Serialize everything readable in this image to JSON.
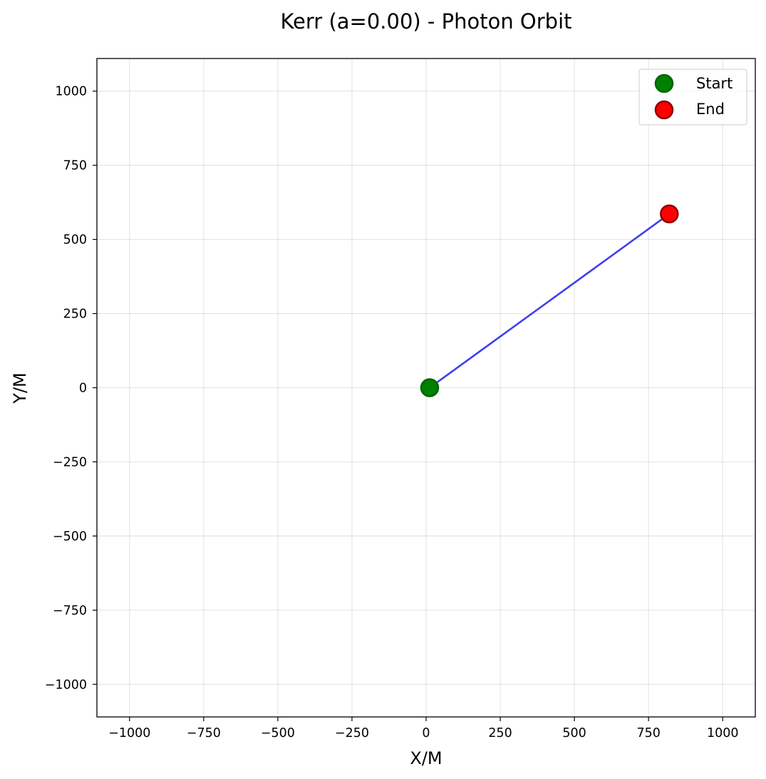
{
  "chart_data": {
    "type": "line",
    "title": "Kerr (a=0.00) - Photon Orbit",
    "xlabel": "X/M",
    "ylabel": "Y/M",
    "xlim": [
      -1110,
      1110
    ],
    "ylim": [
      -1110,
      1110
    ],
    "grid": true,
    "legend_position": "top-right",
    "xticks": [
      -1000,
      -750,
      -500,
      -250,
      0,
      250,
      500,
      750,
      1000
    ],
    "yticks": [
      -1000,
      -750,
      -500,
      -250,
      0,
      250,
      500,
      750,
      1000
    ],
    "xtick_labels": [
      "−1000",
      "−750",
      "−500",
      "−250",
      "0",
      "250",
      "500",
      "750",
      "1000"
    ],
    "ytick_labels": [
      "−1000",
      "−750",
      "−500",
      "−250",
      "0",
      "250",
      "500",
      "750",
      "1000"
    ],
    "series": [
      {
        "type": "line",
        "color": "#3333ee",
        "x": [
          12,
          820
        ],
        "y": [
          0,
          586
        ]
      },
      {
        "type": "scatter",
        "name": "Start",
        "color": "#008000",
        "edge_color": "#006400",
        "x": [
          12
        ],
        "y": [
          0
        ]
      },
      {
        "type": "scatter",
        "name": "End",
        "color": "#ff0000",
        "edge_color": "#8b0000",
        "x": [
          820
        ],
        "y": [
          586
        ]
      }
    ]
  }
}
